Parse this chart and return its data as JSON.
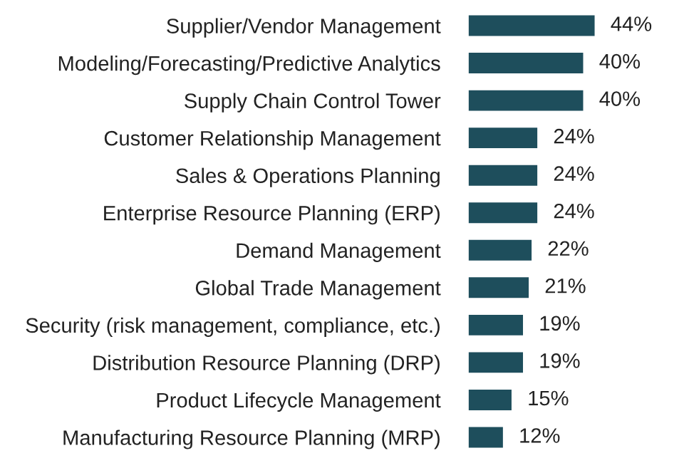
{
  "chart_data": {
    "type": "bar",
    "orientation": "horizontal",
    "categories": [
      "Supplier/Vendor Management",
      "Modeling/Forecasting/Predictive Analytics",
      "Supply Chain Control Tower",
      "Customer Relationship Management",
      "Sales & Operations Planning",
      "Enterprise Resource Planning (ERP)",
      "Demand Management",
      "Global Trade Management",
      "Security (risk management, compliance, etc.)",
      "Distribution Resource Planning (DRP)",
      "Product Lifecycle Management",
      "Manufacturing Resource Planning (MRP)"
    ],
    "values": [
      44,
      40,
      40,
      24,
      24,
      24,
      22,
      21,
      19,
      19,
      15,
      12
    ],
    "value_labels": [
      "44%",
      "40%",
      "40%",
      "24%",
      "24%",
      "24%",
      "22%",
      "21%",
      "19%",
      "19%",
      "15%",
      "12%"
    ],
    "color": "#1e4e5c",
    "grid": false,
    "legend": false,
    "tick_labels": "y"
  }
}
